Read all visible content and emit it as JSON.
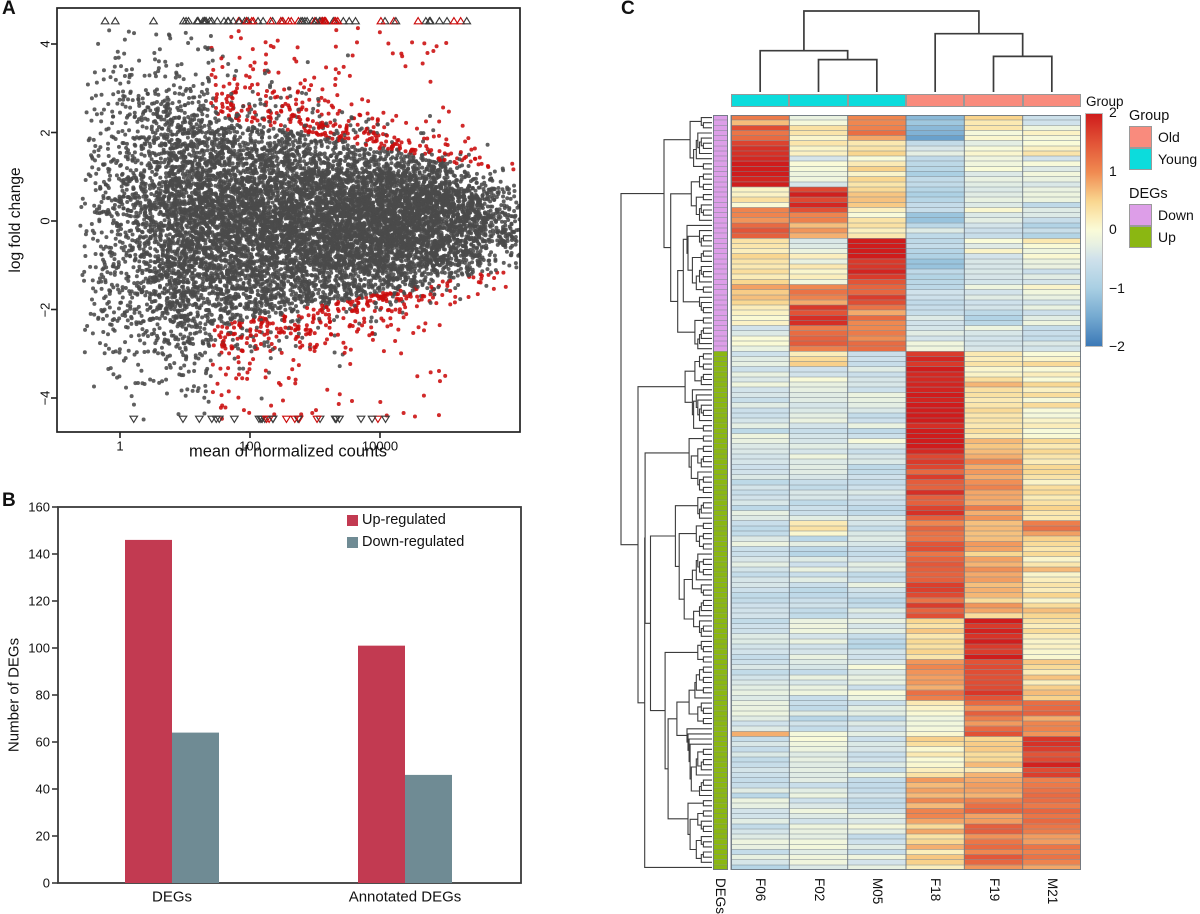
{
  "chart_data": [
    {
      "type": "scatter",
      "subtype": "MA-plot",
      "panel_label": "A",
      "xlabel": "mean of normalized counts",
      "ylabel": "log fold change",
      "x_scale": "log10",
      "x_ticks": [
        {
          "label": "1",
          "lx": 0
        },
        {
          "label": "100",
          "lx": 2
        },
        {
          "label": "10000",
          "lx": 4
        }
      ],
      "y_ticks": [
        {
          "label": "−4",
          "v": -4
        },
        {
          "label": "−2",
          "v": -2
        },
        {
          "label": "0",
          "v": 0
        },
        {
          "label": "2",
          "v": 2
        },
        {
          "label": "4",
          "v": 4
        }
      ],
      "y_clip": 4.5,
      "point_color": "#4a4a4a",
      "sig_color": "#cb0c0c",
      "description": "Dense funnel-shaped cloud of genes narrowing to the right; significant genes red; genes beyond |log fold change| 4.5 drawn as open triangles on the plot edge",
      "gen": {
        "seed": 42,
        "n_points": 14500,
        "n_red_outliers": 120,
        "n_top_triangles": 70,
        "n_bottom_triangles": 26
      }
    },
    {
      "type": "bar",
      "panel_label": "B",
      "ylabel": "Number of DEGs",
      "categories": [
        "DEGs",
        "Annotated DEGs"
      ],
      "series": [
        {
          "name": "Up-regulated",
          "color": "#c23a51",
          "values": [
            146,
            101
          ]
        },
        {
          "name": "Down-regulated",
          "color": "#6f8b94",
          "values": [
            64,
            46
          ]
        }
      ],
      "ylim": [
        0,
        160
      ],
      "ytick_step": 20,
      "legend_position": "top-right"
    },
    {
      "type": "heatmap",
      "panel_label": "C",
      "samples": [
        "F06",
        "F02",
        "M05",
        "F18",
        "F19",
        "M21"
      ],
      "sample_groups": [
        "Young",
        "Young",
        "Young",
        "Old",
        "Old",
        "Old"
      ],
      "strip_label": "Group",
      "row_label": "DEGs",
      "group_colors": {
        "Old": "#f98b7d",
        "Young": "#0cdcdc"
      },
      "deg_colors": {
        "Down": "#dd9ee8",
        "Up": "#8bb712"
      },
      "legend": {
        "group_title": "Group",
        "group_items": [
          "Old",
          "Young"
        ],
        "degs_title": "DEGs",
        "deg_items": [
          "Down",
          "Up"
        ]
      },
      "colorbar": {
        "tick_labels": [
          "2",
          "1",
          "0",
          "−1",
          "−2"
        ],
        "tick_values": [
          2,
          1,
          0,
          -1,
          -2
        ],
        "stops": [
          [
            2,
            "#cf1c1c"
          ],
          [
            1.5,
            "#e25437"
          ],
          [
            1,
            "#f08a51"
          ],
          [
            0.5,
            "#f9d68f"
          ],
          [
            0.25,
            "#fbeab4"
          ],
          [
            0,
            "#fafbd8"
          ],
          [
            -0.25,
            "#e7f0e2"
          ],
          [
            -0.5,
            "#cfe1eb"
          ],
          [
            -1,
            "#a9cfe3"
          ],
          [
            -1.5,
            "#74a9d0"
          ],
          [
            -2,
            "#3c79b7"
          ]
        ]
      },
      "n_rows": 147,
      "n_down": 46,
      "n_up": 101,
      "row_blocks": [
        {
          "deg": "Down",
          "n": 2,
          "v": [
            1.0,
            -0.2,
            0.9,
            -1.0,
            0.4,
            -0.4
          ]
        },
        {
          "deg": "Down",
          "n": 3,
          "v": [
            1.4,
            0.2,
            1.1,
            -1.3,
            0.1,
            -0.1
          ]
        },
        {
          "deg": "Down",
          "n": 3,
          "v": [
            1.7,
            0.2,
            0.5,
            -0.6,
            -0.1,
            0.2
          ]
        },
        {
          "deg": "Down",
          "n": 6,
          "v": [
            2.0,
            -0.2,
            0.3,
            -0.7,
            -0.2,
            -0.2
          ]
        },
        {
          "deg": "Down",
          "n": 4,
          "v": [
            0.2,
            1.8,
            0.5,
            -0.8,
            -0.5,
            -0.4
          ]
        },
        {
          "deg": "Down",
          "n": 3,
          "v": [
            1.1,
            1.2,
            0.2,
            -0.9,
            -0.2,
            -0.5
          ]
        },
        {
          "deg": "Down",
          "n": 3,
          "v": [
            1.3,
            0.9,
            0.3,
            -0.6,
            -0.4,
            -0.7
          ]
        },
        {
          "deg": "Down",
          "n": 3,
          "v": [
            0.4,
            -0.2,
            1.9,
            -0.8,
            -0.1,
            0.1
          ]
        },
        {
          "deg": "Down",
          "n": 6,
          "v": [
            0.5,
            0.1,
            1.8,
            -0.9,
            -0.4,
            -0.3
          ]
        },
        {
          "deg": "Down",
          "n": 4,
          "v": [
            0.6,
            0.9,
            1.5,
            -0.8,
            -0.4,
            -0.2
          ]
        },
        {
          "deg": "Down",
          "n": 4,
          "v": [
            0.2,
            1.6,
            1.0,
            -0.5,
            -0.7,
            -0.4
          ]
        },
        {
          "deg": "Down",
          "n": 5,
          "v": [
            -0.2,
            1.2,
            1.1,
            -0.4,
            -0.3,
            -0.5
          ]
        },
        {
          "deg": "Up",
          "n": 3,
          "v": [
            -0.4,
            0.5,
            -0.4,
            1.9,
            0.1,
            0.3
          ]
        },
        {
          "deg": "Up",
          "n": 17,
          "v": [
            -0.4,
            -0.3,
            -0.4,
            2.0,
            0.4,
            0.2
          ]
        },
        {
          "deg": "Up",
          "n": 13,
          "v": [
            -0.5,
            -0.4,
            -0.5,
            1.6,
            0.9,
            0.3
          ]
        },
        {
          "deg": "Up",
          "n": 3,
          "v": [
            -0.7,
            0.2,
            -0.6,
            1.2,
            0.8,
            0.9
          ]
        },
        {
          "deg": "Up",
          "n": 16,
          "v": [
            -0.4,
            -0.5,
            -0.4,
            1.5,
            0.7,
            0.4
          ]
        },
        {
          "deg": "Up",
          "n": 8,
          "v": [
            -0.5,
            -0.2,
            -0.5,
            0.4,
            2.0,
            0.2
          ]
        },
        {
          "deg": "Up",
          "n": 8,
          "v": [
            -0.4,
            -0.4,
            -0.3,
            1.0,
            1.5,
            0.4
          ]
        },
        {
          "deg": "Up",
          "n": 6,
          "v": [
            -0.3,
            -0.5,
            -0.4,
            0.1,
            1.1,
            1.1
          ]
        },
        {
          "deg": "Up",
          "n": 1,
          "v": [
            0.9,
            -0.4,
            -0.2,
            0.2,
            1.3,
            1.0
          ]
        },
        {
          "deg": "Up",
          "n": 8,
          "v": [
            -0.5,
            -0.3,
            -0.4,
            0.3,
            0.5,
            1.8
          ]
        },
        {
          "deg": "Up",
          "n": 9,
          "v": [
            -0.4,
            -0.3,
            -0.5,
            0.9,
            1.0,
            1.4
          ]
        },
        {
          "deg": "Up",
          "n": 1,
          "v": [
            -0.8,
            -0.2,
            -0.3,
            0.4,
            1.3,
            1.1
          ]
        },
        {
          "deg": "Up",
          "n": 8,
          "v": [
            -0.5,
            -0.1,
            -0.4,
            0.5,
            1.2,
            1.0
          ]
        }
      ],
      "col_dendrogram": {
        "h": 1.0,
        "children": [
          {
            "h": 0.51,
            "children": [
              {
                "leaf": 0
              },
              {
                "h": 0.4,
                "children": [
                  {
                    "leaf": 1
                  },
                  {
                    "leaf": 2
                  }
                ]
              }
            ]
          },
          {
            "h": 0.72,
            "children": [
              {
                "leaf": 3
              },
              {
                "h": 0.44,
                "children": [
                  {
                    "leaf": 4
                  },
                  {
                    "leaf": 5
                  }
                ]
              }
            ]
          }
        ]
      },
      "row_dendrogram": {
        "seed": 11,
        "first_split": 46,
        "curve": 0.55
      },
      "jitter": {
        "seed": 7,
        "amp": 0.5,
        "row_amp": 0.25
      }
    }
  ]
}
